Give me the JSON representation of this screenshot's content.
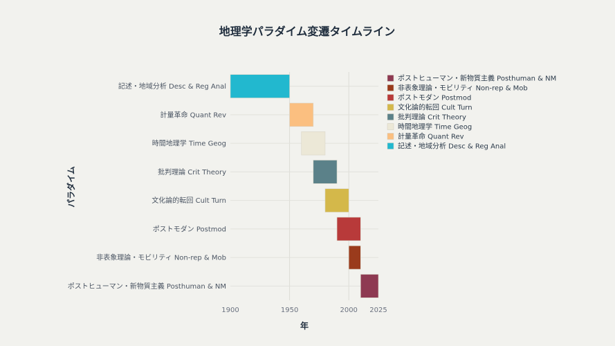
{
  "chart_data": {
    "type": "bar",
    "orientation": "horizontal-range",
    "title": "地理学パラダイム変遷タイムライン",
    "xlabel": "年",
    "ylabel": "パラダイム",
    "xlim": [
      1900,
      2025
    ],
    "xticks": [
      1900,
      1950,
      2000,
      2025
    ],
    "grid": true,
    "legend_position": "right",
    "categories": [
      "記述・地域分析 Desc & Reg Anal",
      "計量革命 Quant Rev",
      "時間地理学 Time Geog",
      "批判理論 Crit Theory",
      "文化論的転回 Cult Turn",
      "ポストモダン Postmod",
      "非表象理論・モビリティ Non-rep & Mob",
      "ポストヒューマン・新物質主義 Posthuman & NM"
    ],
    "series": [
      {
        "name": "記述・地域分析 Desc & Reg Anal",
        "start": 1900,
        "end": 1950,
        "color": "#22b8cf"
      },
      {
        "name": "計量革命 Quant Rev",
        "start": 1950,
        "end": 1970,
        "color": "#fbbf80"
      },
      {
        "name": "時間地理学 Time Geog",
        "start": 1960,
        "end": 1980,
        "color": "#ece8d7"
      },
      {
        "name": "批判理論 Crit Theory",
        "start": 1970,
        "end": 1990,
        "color": "#5b8189"
      },
      {
        "name": "文化論的転回 Cult Turn",
        "start": 1980,
        "end": 2000,
        "color": "#d4b84a"
      },
      {
        "name": "ポストモダン Postmod",
        "start": 1990,
        "end": 2010,
        "color": "#b83a3a"
      },
      {
        "name": "非表象理論・モビリティ Non-rep & Mob",
        "start": 2000,
        "end": 2010,
        "color": "#9a3b1c"
      },
      {
        "name": "ポストヒューマン・新物質主義 Posthuman & NM",
        "start": 2010,
        "end": 2025,
        "color": "#8e3a52"
      }
    ],
    "legend_order": [
      7,
      6,
      5,
      4,
      3,
      2,
      1,
      0
    ]
  }
}
